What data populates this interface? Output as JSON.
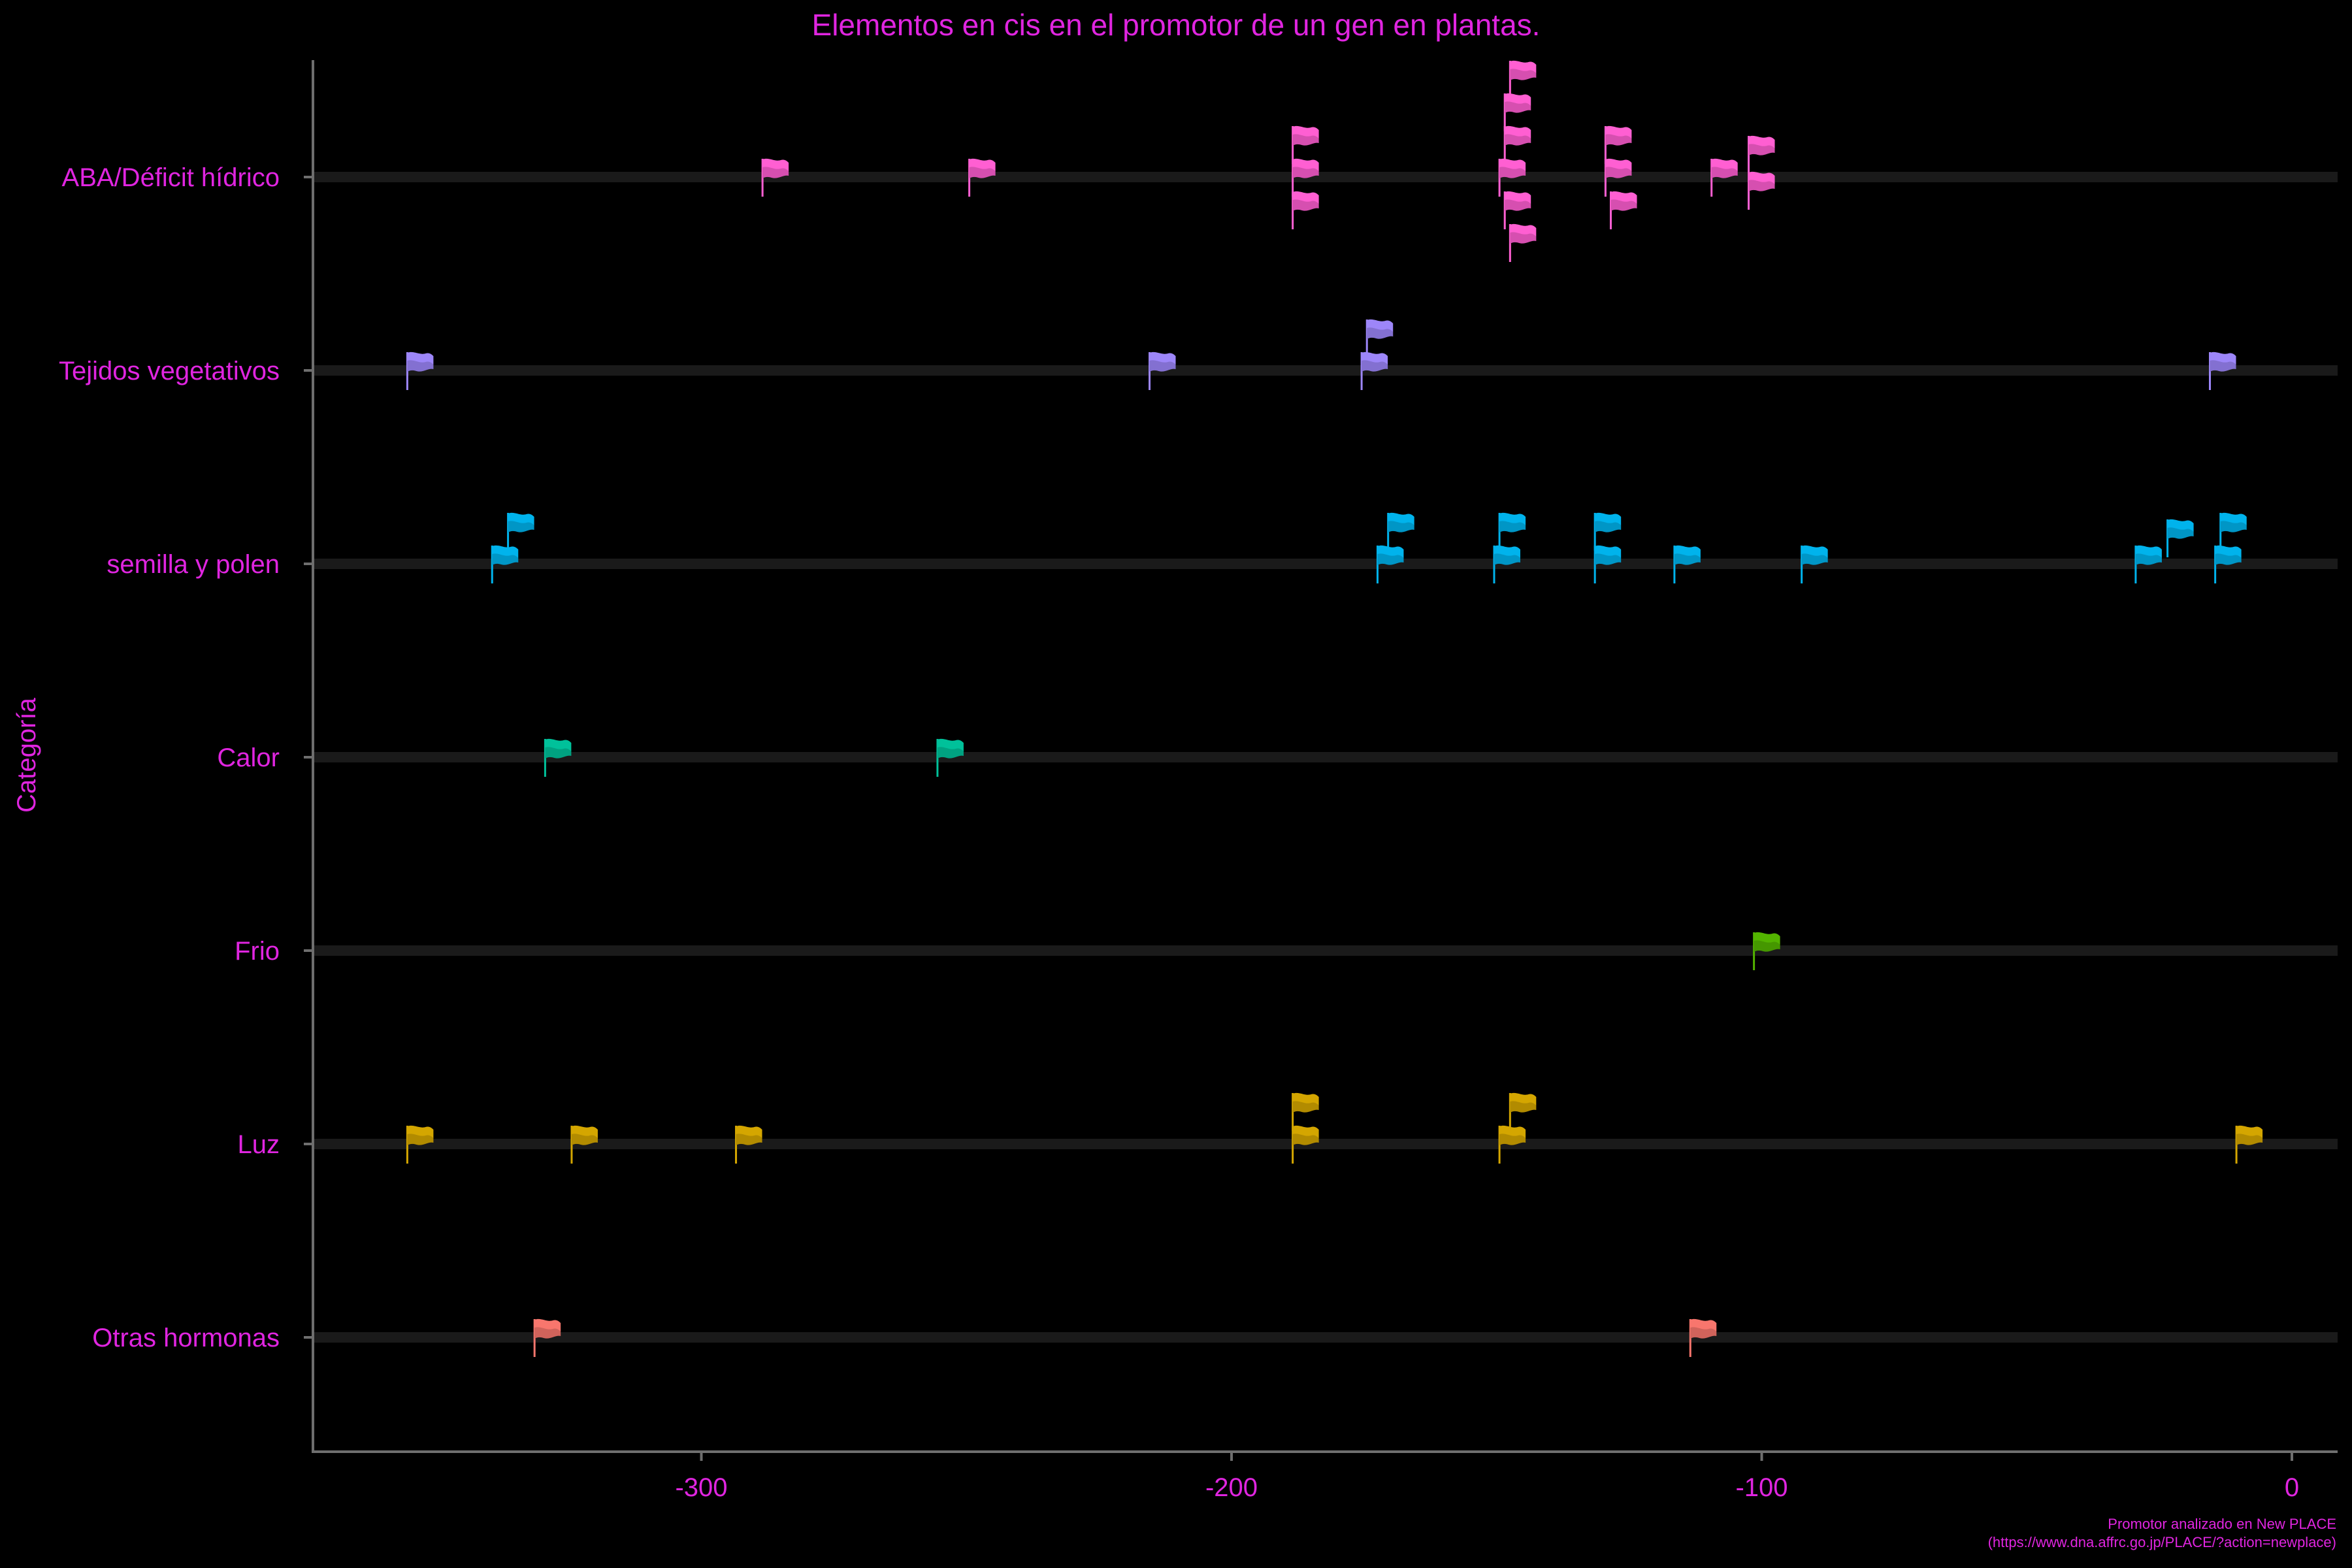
{
  "chart_data": {
    "type": "scatter",
    "title": "Elementos en cis en el promotor de un gen en plantas.",
    "xlabel": "",
    "ylabel": "Categoría",
    "xlim": [
      -373,
      8
    ],
    "xticks": [
      -300,
      -200,
      -100,
      0
    ],
    "xtick_labels": [
      "-300",
      "-200",
      "-100",
      "0"
    ],
    "marker": "flag",
    "grid": false,
    "legend": "none",
    "text_color": "#E025E0",
    "track_color": "#1A1A1A",
    "axis_color": "#6E6E6E",
    "caption": [
      "Promotor analizado en New PLACE",
      "(https://www.dna.affrc.go.jp/PLACE/?action=newplace)"
    ],
    "categories": [
      "ABA/Déficit hídrico",
      "Tejidos vegetativos",
      "semilla y polen",
      "Calor",
      "Frio",
      "Luz",
      "Otras hormonas"
    ],
    "series": [
      {
        "category": "ABA/Déficit hídrico",
        "color": "#FF5FD2",
        "points": [
          {
            "x": -286,
            "stack": 0
          },
          {
            "x": -247,
            "stack": 0
          },
          {
            "x": -186,
            "stack": 1
          },
          {
            "x": -186,
            "stack": 0
          },
          {
            "x": -186,
            "stack": -1
          },
          {
            "x": -145,
            "stack": 3
          },
          {
            "x": -146,
            "stack": 2
          },
          {
            "x": -146,
            "stack": 1
          },
          {
            "x": -147,
            "stack": 0
          },
          {
            "x": -146,
            "stack": -1
          },
          {
            "x": -145,
            "stack": -2
          },
          {
            "x": -127,
            "stack": 1
          },
          {
            "x": -127,
            "stack": 0
          },
          {
            "x": -126,
            "stack": -1
          },
          {
            "x": -107,
            "stack": 0
          },
          {
            "x": -100,
            "stack": 0.7
          },
          {
            "x": -100,
            "stack": -0.4
          }
        ]
      },
      {
        "category": "Tejidos vegetativos",
        "color": "#9D86F9",
        "points": [
          {
            "x": -353,
            "stack": 0
          },
          {
            "x": -213,
            "stack": 0
          },
          {
            "x": -172,
            "stack": 1
          },
          {
            "x": -173,
            "stack": 0
          },
          {
            "x": -13,
            "stack": 0
          }
        ]
      },
      {
        "category": "semilla y polen",
        "color": "#00B3EC",
        "points": [
          {
            "x": -334,
            "stack": 1
          },
          {
            "x": -337,
            "stack": 0
          },
          {
            "x": -168,
            "stack": 1
          },
          {
            "x": -170,
            "stack": 0
          },
          {
            "x": -147,
            "stack": 1
          },
          {
            "x": -148,
            "stack": 0
          },
          {
            "x": -129,
            "stack": 1
          },
          {
            "x": -129,
            "stack": 0
          },
          {
            "x": -114,
            "stack": 0
          },
          {
            "x": -90,
            "stack": 0
          },
          {
            "x": -21,
            "stack": 0.8
          },
          {
            "x": -11,
            "stack": 1
          },
          {
            "x": -27,
            "stack": 0
          },
          {
            "x": -12,
            "stack": 0
          }
        ]
      },
      {
        "category": "Calor",
        "color": "#00C19A",
        "points": [
          {
            "x": -327,
            "stack": 0
          },
          {
            "x": -253,
            "stack": 0
          }
        ]
      },
      {
        "category": "Frio",
        "color": "#53B400",
        "points": [
          {
            "x": -99,
            "stack": 0
          }
        ]
      },
      {
        "category": "Luz",
        "color": "#D4A600",
        "points": [
          {
            "x": -353,
            "stack": 0
          },
          {
            "x": -322,
            "stack": 0
          },
          {
            "x": -291,
            "stack": 0
          },
          {
            "x": -186,
            "stack": 1
          },
          {
            "x": -186,
            "stack": 0
          },
          {
            "x": -145,
            "stack": 1
          },
          {
            "x": -147,
            "stack": 0
          },
          {
            "x": -8,
            "stack": 0
          }
        ]
      },
      {
        "category": "Otras hormonas",
        "color": "#F8766D",
        "points": [
          {
            "x": -329,
            "stack": 0
          },
          {
            "x": -111,
            "stack": 0
          }
        ]
      }
    ]
  }
}
